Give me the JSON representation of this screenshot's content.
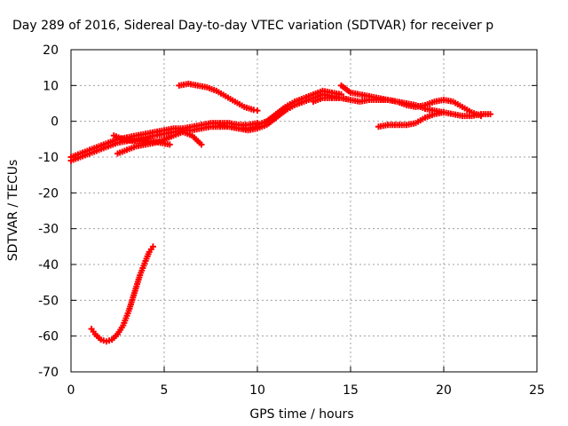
{
  "chart_data": {
    "type": "scatter",
    "title": "Day 289 of 2016, Sidereal Day-to-day VTEC variation (SDTVAR) for receiver p",
    "xlabel": "GPS time / hours",
    "ylabel": "SDTVAR / TECUs",
    "xlim": [
      0,
      25
    ],
    "ylim": [
      -70,
      20
    ],
    "xticks": [
      0,
      5,
      10,
      15,
      20,
      25
    ],
    "yticks": [
      -70,
      -60,
      -50,
      -40,
      -30,
      -20,
      -10,
      0,
      10,
      20
    ],
    "xtick_labels": [
      "0",
      "5",
      "10",
      "15",
      "20",
      "25"
    ],
    "ytick_labels": [
      "-70",
      "-60",
      "-50",
      "-40",
      "-30",
      "-20",
      "-10",
      "0",
      "10",
      "20"
    ],
    "grid": true,
    "legend": "none",
    "marker": "plus",
    "series_color": "#ff0000",
    "series": [
      {
        "x": [
          0.0,
          0.5,
          1.0,
          1.5,
          2.0,
          2.5,
          3.0,
          3.5,
          4.0,
          4.5,
          5.0,
          5.5,
          6.0,
          6.5,
          7.0,
          7.5,
          8.0,
          8.5,
          9.0,
          9.5,
          10.0
        ],
        "y": [
          -11,
          -10,
          -9,
          -8,
          -7,
          -6,
          -5.5,
          -5,
          -4.5,
          -4,
          -3.5,
          -3,
          -2.5,
          -2.5,
          -2,
          -1.5,
          -1.5,
          -1.5,
          -2,
          -2,
          -1.5
        ]
      },
      {
        "x": [
          0.0,
          0.5,
          1.0,
          1.5,
          2.0,
          2.5,
          3.0,
          3.5,
          4.0,
          4.5,
          5.0,
          5.5,
          6.0,
          6.5,
          7.0,
          7.5,
          8.0,
          8.5,
          9.0,
          9.5,
          10.0
        ],
        "y": [
          -10,
          -9,
          -8,
          -7,
          -6,
          -5,
          -4.5,
          -4,
          -3.5,
          -3,
          -2.5,
          -2,
          -2,
          -1.5,
          -1,
          -0.5,
          -0.5,
          -0.5,
          -1,
          -1,
          -0.5
        ]
      },
      {
        "x": [
          2.3,
          2.8,
          3.3,
          3.8,
          4.3,
          4.8,
          5.3
        ],
        "y": [
          -4,
          -5,
          -5.5,
          -5.5,
          -5.5,
          -6,
          -6.5
        ]
      },
      {
        "x": [
          2.5,
          3.0,
          3.5,
          4.0,
          4.5,
          5.0,
          5.5
        ],
        "y": [
          -9,
          -8,
          -7,
          -6.5,
          -6,
          -5,
          -4
        ]
      },
      {
        "x": [
          5.0,
          5.5,
          6.0,
          6.5,
          7.0
        ],
        "y": [
          -5,
          -4,
          -3,
          -4,
          -6.5
        ]
      },
      {
        "x": [
          5.8,
          6.3,
          6.8,
          7.3,
          7.8,
          8.3,
          8.8,
          9.3,
          9.8,
          10.0
        ],
        "y": [
          10,
          10.5,
          10,
          9.5,
          8.5,
          7,
          5.5,
          4,
          3.2,
          3
        ]
      },
      {
        "x": [
          8.0,
          8.5,
          9.0,
          9.5,
          10.0,
          10.5,
          11.0,
          11.5,
          12.0,
          12.5,
          13.0,
          13.5,
          14.0,
          14.5,
          15.0
        ],
        "y": [
          -1,
          -1.5,
          -2,
          -2.5,
          -2,
          -1,
          1,
          3,
          4.5,
          5.5,
          6.5,
          7.5,
          7,
          6.5,
          6
        ]
      },
      {
        "x": [
          10.0,
          10.5,
          11.0,
          11.5,
          12.0,
          12.5,
          13.0,
          13.5,
          14.0,
          14.5
        ],
        "y": [
          -1,
          0,
          2,
          4,
          5.5,
          6.5,
          7.5,
          8.5,
          8,
          7.5
        ]
      },
      {
        "x": [
          13.0,
          13.5,
          14.0,
          14.5,
          15.0,
          15.5,
          16.0,
          16.5,
          17.0,
          17.5
        ],
        "y": [
          5.5,
          6.5,
          6.5,
          6.5,
          6,
          5.5,
          6,
          6,
          6,
          5.5
        ]
      },
      {
        "x": [
          14.5,
          15.0,
          15.5,
          16.0,
          16.5,
          17.0,
          17.5,
          18.0,
          18.5,
          19.0,
          19.5,
          20.0,
          20.5,
          21.0,
          21.5,
          22.0,
          22.5
        ],
        "y": [
          10,
          8,
          7.5,
          7,
          6.5,
          6,
          5.5,
          5,
          4.5,
          3.5,
          3,
          2.5,
          2,
          1.5,
          1.5,
          2,
          2
        ]
      },
      {
        "x": [
          16.5,
          17.0,
          17.5,
          18.0,
          18.5,
          19.0,
          19.5,
          20.0,
          20.5,
          21.0,
          21.5,
          22.0
        ],
        "y": [
          6,
          6,
          5.5,
          4.5,
          4,
          4.5,
          5.5,
          6,
          5.5,
          4,
          2.5,
          1.5
        ]
      },
      {
        "x": [
          16.5,
          17.0,
          17.5,
          18.0,
          18.5,
          19.0,
          19.5,
          20.0
        ],
        "y": [
          -1.5,
          -1,
          -1,
          -1,
          -0.5,
          1,
          2,
          2.5
        ]
      },
      {
        "x": [
          1.1,
          1.3,
          1.6,
          1.9,
          2.2,
          2.5,
          2.8,
          3.1,
          3.4,
          3.7,
          4.0,
          4.2,
          4.4
        ],
        "y": [
          -58,
          -59.5,
          -61,
          -61.5,
          -61,
          -59.5,
          -57,
          -53,
          -48,
          -43,
          -39,
          -36.5,
          -35
        ]
      }
    ]
  }
}
